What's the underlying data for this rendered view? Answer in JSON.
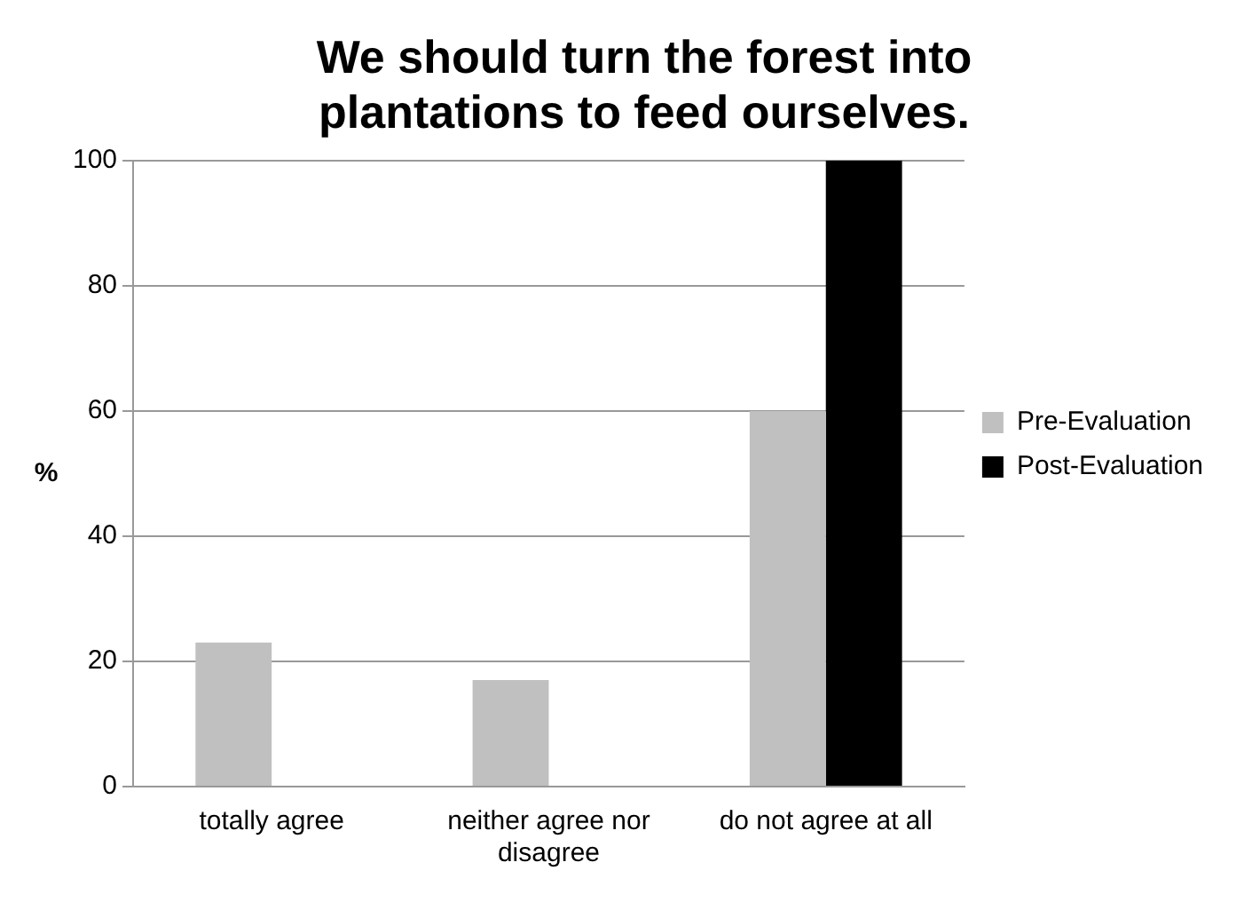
{
  "chart_data": {
    "type": "bar",
    "title": "We should turn the forest into plantations to feed ourselves.",
    "ylabel": "%",
    "categories": [
      "totally agree",
      "neither agree nor disagree",
      "do not agree at all"
    ],
    "series": [
      {
        "name": "Pre-Evaluation",
        "color": "#c0c0c0",
        "values": [
          23,
          17,
          60
        ]
      },
      {
        "name": "Post-Evaluation",
        "color": "#000000",
        "values": [
          0,
          0,
          100
        ]
      }
    ],
    "ylim": [
      0,
      100
    ],
    "yticks": [
      0,
      20,
      40,
      60,
      80,
      100
    ],
    "grid": "y",
    "legend": "right"
  }
}
